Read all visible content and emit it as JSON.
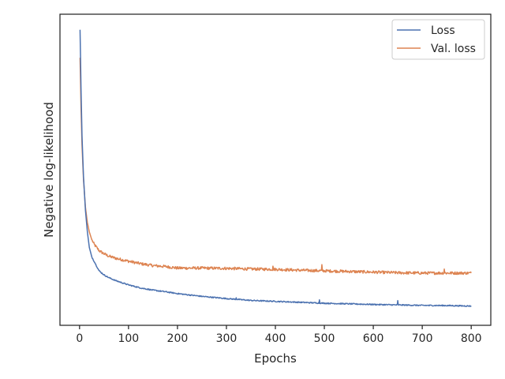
{
  "chart_data": {
    "type": "line",
    "xlabel": "Epochs",
    "ylabel": "Negative log-likelihood",
    "xlim": [
      -40,
      840
    ],
    "ylim": [
      0,
      100
    ],
    "xticks": [
      0,
      100,
      200,
      300,
      400,
      500,
      600,
      700,
      800
    ],
    "yticks_labeled": false,
    "grid": false,
    "legend_position": "top-right",
    "colors": {
      "loss": "#4c72b0",
      "val_loss": "#dd8452",
      "axes": "#262626",
      "legend_border": "#cccccc"
    },
    "series": [
      {
        "name": "Loss",
        "key": "loss",
        "x": [
          1,
          2,
          3,
          5,
          8,
          12,
          16,
          20,
          25,
          30,
          40,
          50,
          60,
          75,
          100,
          125,
          150,
          175,
          200,
          250,
          300,
          350,
          400,
          450,
          500,
          550,
          600,
          650,
          700,
          750,
          800
        ],
        "y": [
          95.0,
          86.0,
          76.0,
          61.0,
          48.0,
          37.0,
          30.0,
          25.0,
          22.0,
          20.5,
          17.5,
          16.2,
          15.3,
          14.3,
          13.0,
          12.0,
          11.3,
          10.8,
          10.2,
          9.3,
          8.6,
          8.0,
          7.7,
          7.4,
          7.1,
          6.9,
          6.7,
          6.55,
          6.4,
          6.35,
          6.2
        ],
        "noise": 0.18,
        "spikes": [
          [
            320,
            0.6
          ],
          [
            490,
            1.0
          ],
          [
            650,
            1.3
          ]
        ]
      },
      {
        "name": "Val. loss",
        "key": "val_loss",
        "x": [
          1,
          2,
          3,
          5,
          8,
          12,
          16,
          20,
          25,
          30,
          40,
          50,
          60,
          75,
          100,
          125,
          150,
          175,
          200,
          250,
          300,
          350,
          400,
          450,
          500,
          550,
          600,
          650,
          700,
          750,
          800
        ],
        "y": [
          86.0,
          78.0,
          70.0,
          58.0,
          47.0,
          38.0,
          33.0,
          30.0,
          27.5,
          26.0,
          24.0,
          23.0,
          22.2,
          21.5,
          20.6,
          19.8,
          19.2,
          18.9,
          18.4,
          18.4,
          18.3,
          18.1,
          18.0,
          17.7,
          17.5,
          17.3,
          17.1,
          16.9,
          16.8,
          16.8,
          16.8
        ],
        "noise": 0.45,
        "spikes": [
          [
            395,
            1.2
          ],
          [
            495,
            1.6
          ],
          [
            745,
            1.5
          ]
        ]
      }
    ]
  }
}
